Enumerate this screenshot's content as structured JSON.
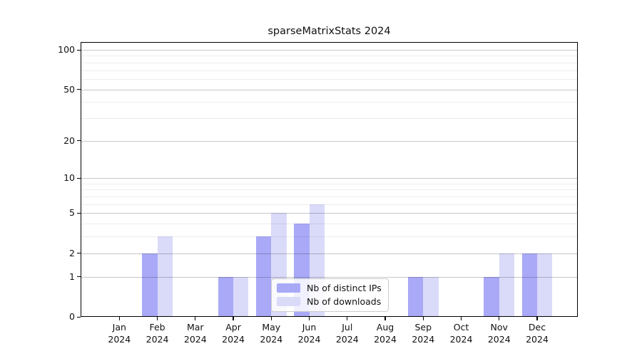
{
  "title": "sparseMatrixStats 2024",
  "legend": {
    "position": "lower center",
    "items": [
      {
        "label": "Nb of distinct IPs",
        "color": "#a9a9f7"
      },
      {
        "label": "Nb of downloads",
        "color": "#dadaf9"
      }
    ]
  },
  "axes": {
    "y_tick_labels": [
      "100",
      "50",
      "20",
      "10",
      "5",
      "2",
      "1",
      "0"
    ],
    "x_months": [
      "Jan",
      "Feb",
      "Mar",
      "Apr",
      "May",
      "Jun",
      "Jul",
      "Aug",
      "Sep",
      "Oct",
      "Nov",
      "Dec"
    ],
    "x_year": "2024"
  },
  "chart_data": {
    "type": "bar",
    "title": "sparseMatrixStats 2024",
    "categories": [
      "Jan 2024",
      "Feb 2024",
      "Mar 2024",
      "Apr 2024",
      "May 2024",
      "Jun 2024",
      "Jul 2024",
      "Aug 2024",
      "Sep 2024",
      "Oct 2024",
      "Nov 2024",
      "Dec 2024"
    ],
    "series": [
      {
        "name": "Nb of distinct IPs",
        "color": "#a9a9f7",
        "values": [
          0,
          2,
          0,
          1,
          3,
          4,
          0,
          0,
          1,
          0,
          1,
          2
        ]
      },
      {
        "name": "Nb of downloads",
        "color": "#dadaf9",
        "values": [
          0,
          3,
          0,
          1,
          5,
          6,
          0,
          0,
          1,
          0,
          2,
          2
        ]
      }
    ],
    "xlabel": "",
    "ylabel": "",
    "y_scale": "log1p",
    "ylim": [
      0,
      113
    ],
    "y_ticks_major": [
      0,
      1,
      2,
      5,
      10,
      20,
      50,
      100
    ],
    "y_ticks_minor": [
      3,
      4,
      6,
      7,
      8,
      9,
      30,
      40,
      60,
      70,
      80,
      90
    ],
    "grid": true,
    "bar_layout": "paired side-by-side",
    "legend_position": "lower center"
  },
  "colors": {
    "bar_distinct_ips": "#a9a9f7",
    "bar_downloads": "#dadaf9",
    "grid_major": "rgba(0,0,0,0.22)",
    "grid_minor": "rgba(0,0,0,0.07)",
    "axis": "#000000",
    "legend_border": "#cccccc",
    "background": "#ffffff"
  }
}
